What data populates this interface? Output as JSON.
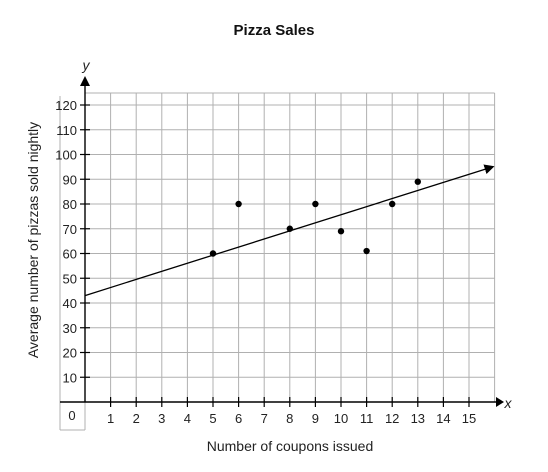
{
  "chart_data": {
    "type": "scatter",
    "title": "Pizza Sales",
    "xlabel": "Number of coupons issued",
    "ylabel": "Average number of pizzas sold nightly",
    "x_axis_letter": "x",
    "y_axis_letter": "y",
    "origin_label": "0",
    "xlim": [
      0,
      16
    ],
    "ylim": [
      0,
      120
    ],
    "x_ticks": [
      1,
      2,
      3,
      4,
      5,
      6,
      7,
      8,
      9,
      10,
      11,
      12,
      13,
      14,
      15
    ],
    "y_ticks": [
      10,
      20,
      30,
      40,
      50,
      60,
      70,
      80,
      90,
      100,
      110,
      120
    ],
    "grid": true,
    "points": [
      {
        "x": 5,
        "y": 60
      },
      {
        "x": 6,
        "y": 80
      },
      {
        "x": 8,
        "y": 70
      },
      {
        "x": 9,
        "y": 80
      },
      {
        "x": 10,
        "y": 69
      },
      {
        "x": 11,
        "y": 61
      },
      {
        "x": 12,
        "y": 80
      },
      {
        "x": 13,
        "y": 89
      }
    ],
    "trend_line": {
      "start": {
        "x": 0,
        "y": 43
      },
      "end": {
        "x": 16,
        "y": 95
      },
      "arrow_end": true
    },
    "colors": {
      "grid": "#b0b0b0",
      "axis": "#000000",
      "points": "#000000"
    }
  }
}
